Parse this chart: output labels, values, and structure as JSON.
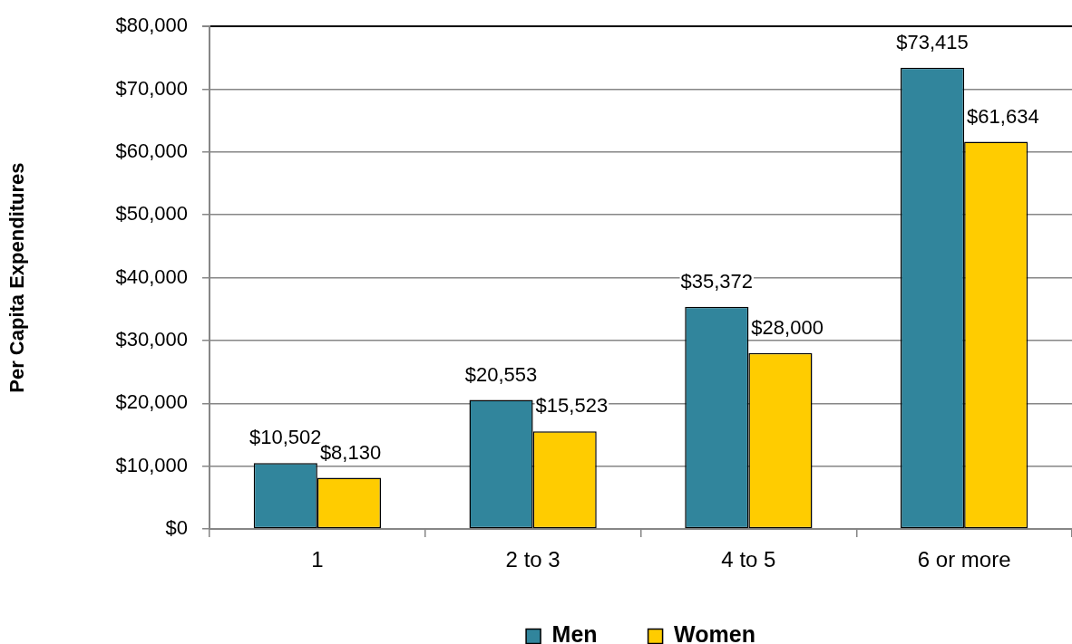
{
  "chart_data": {
    "type": "bar",
    "ylabel": "Per Capita Expenditures",
    "categories": [
      "1",
      "2 to 3",
      "4 to 5",
      "6 or more"
    ],
    "series": [
      {
        "name": "Men",
        "color": "#31859c",
        "values": [
          10502,
          20553,
          35372,
          73415
        ],
        "value_labels": [
          "$10,502",
          "$20,553",
          "$35,372",
          "$73,415"
        ]
      },
      {
        "name": "Women",
        "color": "#ffcc00",
        "values": [
          8130,
          15523,
          28000,
          61634
        ],
        "value_labels": [
          "$8,130",
          "$15,523",
          "$28,000",
          "$61,634"
        ]
      }
    ],
    "ylim": [
      0,
      80000
    ],
    "yticks": [
      {
        "value": 0,
        "label": "$0"
      },
      {
        "value": 10000,
        "label": "$10,000"
      },
      {
        "value": 20000,
        "label": "$20,000"
      },
      {
        "value": 30000,
        "label": "$30,000"
      },
      {
        "value": 40000,
        "label": "$40,000"
      },
      {
        "value": 50000,
        "label": "$50,000"
      },
      {
        "value": 60000,
        "label": "$60,000"
      },
      {
        "value": 70000,
        "label": "$70,000"
      },
      {
        "value": 80000,
        "label": "$80,000"
      }
    ],
    "grid": "y",
    "legend": "bottom"
  }
}
